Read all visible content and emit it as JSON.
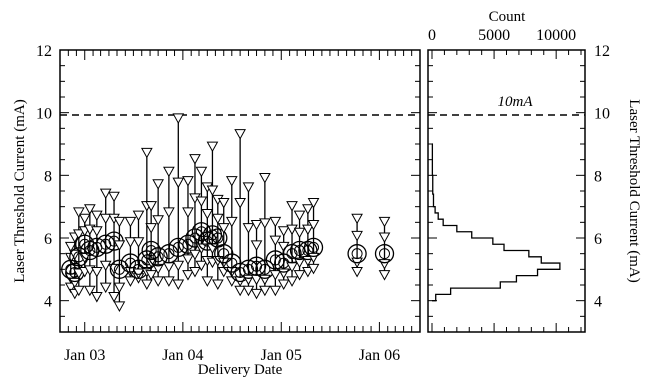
{
  "chart_data": [
    {
      "type": "scatter",
      "xlabel": "Delivery Date",
      "ylabel": "Laser Threshold Current (mA)",
      "x_ticks": [
        "Jan 03",
        "Jan 04",
        "Jan 05",
        "Jan 06"
      ],
      "x_range": [
        "2002-10-01",
        "2006-06-01"
      ],
      "ylim": [
        3,
        12
      ],
      "y_ticks": [
        4,
        6,
        8,
        10,
        12
      ],
      "reference_line": {
        "y": 10,
        "style": "dashed"
      },
      "series": [
        {
          "points": [
            {
              "x": "2002-11-10",
              "median": 5.0,
              "min": 4.4,
              "max": 5.7
            },
            {
              "x": "2002-11-25",
              "median": 4.9,
              "min": 4.2,
              "max": 6.0
            },
            {
              "x": "2002-12-10",
              "median": 5.4,
              "min": 4.3,
              "max": 6.8
            },
            {
              "x": "2003-01-01",
              "median": 5.8,
              "min": 4.9,
              "max": 6.6
            },
            {
              "x": "2003-01-20",
              "median": 5.6,
              "min": 4.3,
              "max": 6.9
            },
            {
              "x": "2003-02-15",
              "median": 5.7,
              "min": 4.1,
              "max": 6.7
            },
            {
              "x": "2003-03-20",
              "median": 5.8,
              "min": 4.4,
              "max": 7.4
            },
            {
              "x": "2003-04-20",
              "median": 5.9,
              "min": 4.1,
              "max": 7.3
            },
            {
              "x": "2003-05-10",
              "median": 5.0,
              "min": 3.8,
              "max": 6.5
            },
            {
              "x": "2003-06-20",
              "median": 5.2,
              "min": 4.6,
              "max": 6.5
            },
            {
              "x": "2003-07-20",
              "median": 5.0,
              "min": 4.7,
              "max": 6.7
            },
            {
              "x": "2003-08-20",
              "median": 5.3,
              "min": 4.5,
              "max": 8.7
            },
            {
              "x": "2003-09-05",
              "median": 5.6,
              "min": 4.8,
              "max": 7.0
            },
            {
              "x": "2003-10-01",
              "median": 5.4,
              "min": 4.6,
              "max": 7.7
            },
            {
              "x": "2003-11-10",
              "median": 5.5,
              "min": 4.6,
              "max": 8.1
            },
            {
              "x": "2003-12-15",
              "median": 5.7,
              "min": 4.5,
              "max": 9.8
            },
            {
              "x": "2004-01-20",
              "median": 5.8,
              "min": 4.8,
              "max": 7.8
            },
            {
              "x": "2004-02-15",
              "median": 6.0,
              "min": 4.9,
              "max": 8.5
            },
            {
              "x": "2004-03-10",
              "median": 6.2,
              "min": 5.1,
              "max": 8.1
            },
            {
              "x": "2004-04-01",
              "median": 5.9,
              "min": 4.6,
              "max": 7.6
            },
            {
              "x": "2004-04-20",
              "median": 6.1,
              "min": 5.2,
              "max": 8.9
            },
            {
              "x": "2004-05-10",
              "median": 6.0,
              "min": 4.5,
              "max": 7.2
            },
            {
              "x": "2004-06-01",
              "median": 5.5,
              "min": 4.9,
              "max": 7.1
            },
            {
              "x": "2004-07-01",
              "median": 5.2,
              "min": 4.6,
              "max": 7.8
            },
            {
              "x": "2004-08-01",
              "median": 4.9,
              "min": 4.3,
              "max": 9.3
            },
            {
              "x": "2004-09-01",
              "median": 5.0,
              "min": 4.3,
              "max": 7.6
            },
            {
              "x": "2004-10-01",
              "median": 5.1,
              "min": 4.2,
              "max": 6.4
            },
            {
              "x": "2004-11-01",
              "median": 5.0,
              "min": 4.3,
              "max": 7.9
            },
            {
              "x": "2004-12-10",
              "median": 5.3,
              "min": 4.3,
              "max": 6.5
            },
            {
              "x": "2005-01-10",
              "median": 5.2,
              "min": 4.5,
              "max": 6.2
            },
            {
              "x": "2005-02-10",
              "median": 5.5,
              "min": 4.6,
              "max": 7.0
            },
            {
              "x": "2005-03-10",
              "median": 5.6,
              "min": 4.8,
              "max": 6.7
            },
            {
              "x": "2005-04-10",
              "median": 5.6,
              "min": 4.9,
              "max": 6.9
            },
            {
              "x": "2005-05-01",
              "median": 5.7,
              "min": 5.0,
              "max": 7.1
            },
            {
              "x": "2005-10-10",
              "median": 5.5,
              "min": 4.9,
              "max": 6.6
            },
            {
              "x": "2006-01-20",
              "median": 5.5,
              "min": 4.8,
              "max": 6.5
            }
          ]
        }
      ]
    },
    {
      "type": "histogram",
      "top_axis_label": "Count",
      "ylabel": "Laser Threshold Current (mA)",
      "x_ticks": [
        0,
        5000,
        10000
      ],
      "xlim": [
        0,
        12000
      ],
      "ylim": [
        3,
        12
      ],
      "y_ticks": [
        4,
        6,
        8,
        10,
        12
      ],
      "reference_line": {
        "y": 10,
        "style": "dashed",
        "label": "10mA"
      },
      "bins": [
        {
          "y0": 4.0,
          "y1": 4.2,
          "count": 300
        },
        {
          "y0": 4.2,
          "y1": 4.4,
          "count": 1500
        },
        {
          "y0": 4.4,
          "y1": 4.6,
          "count": 5500
        },
        {
          "y0": 4.6,
          "y1": 4.8,
          "count": 6800
        },
        {
          "y0": 4.8,
          "y1": 5.0,
          "count": 8500
        },
        {
          "y0": 5.0,
          "y1": 5.2,
          "count": 10300
        },
        {
          "y0": 5.2,
          "y1": 5.4,
          "count": 8800
        },
        {
          "y0": 5.4,
          "y1": 5.6,
          "count": 7800
        },
        {
          "y0": 5.6,
          "y1": 5.8,
          "count": 5800
        },
        {
          "y0": 5.8,
          "y1": 6.0,
          "count": 4900
        },
        {
          "y0": 6.0,
          "y1": 6.2,
          "count": 3200
        },
        {
          "y0": 6.2,
          "y1": 6.4,
          "count": 2000
        },
        {
          "y0": 6.4,
          "y1": 6.6,
          "count": 900
        },
        {
          "y0": 6.6,
          "y1": 6.8,
          "count": 500
        },
        {
          "y0": 6.8,
          "y1": 7.0,
          "count": 250
        },
        {
          "y0": 7.0,
          "y1": 7.4,
          "count": 120
        },
        {
          "y0": 7.4,
          "y1": 8.0,
          "count": 60
        },
        {
          "y0": 8.0,
          "y1": 9.0,
          "count": 30
        }
      ]
    }
  ]
}
